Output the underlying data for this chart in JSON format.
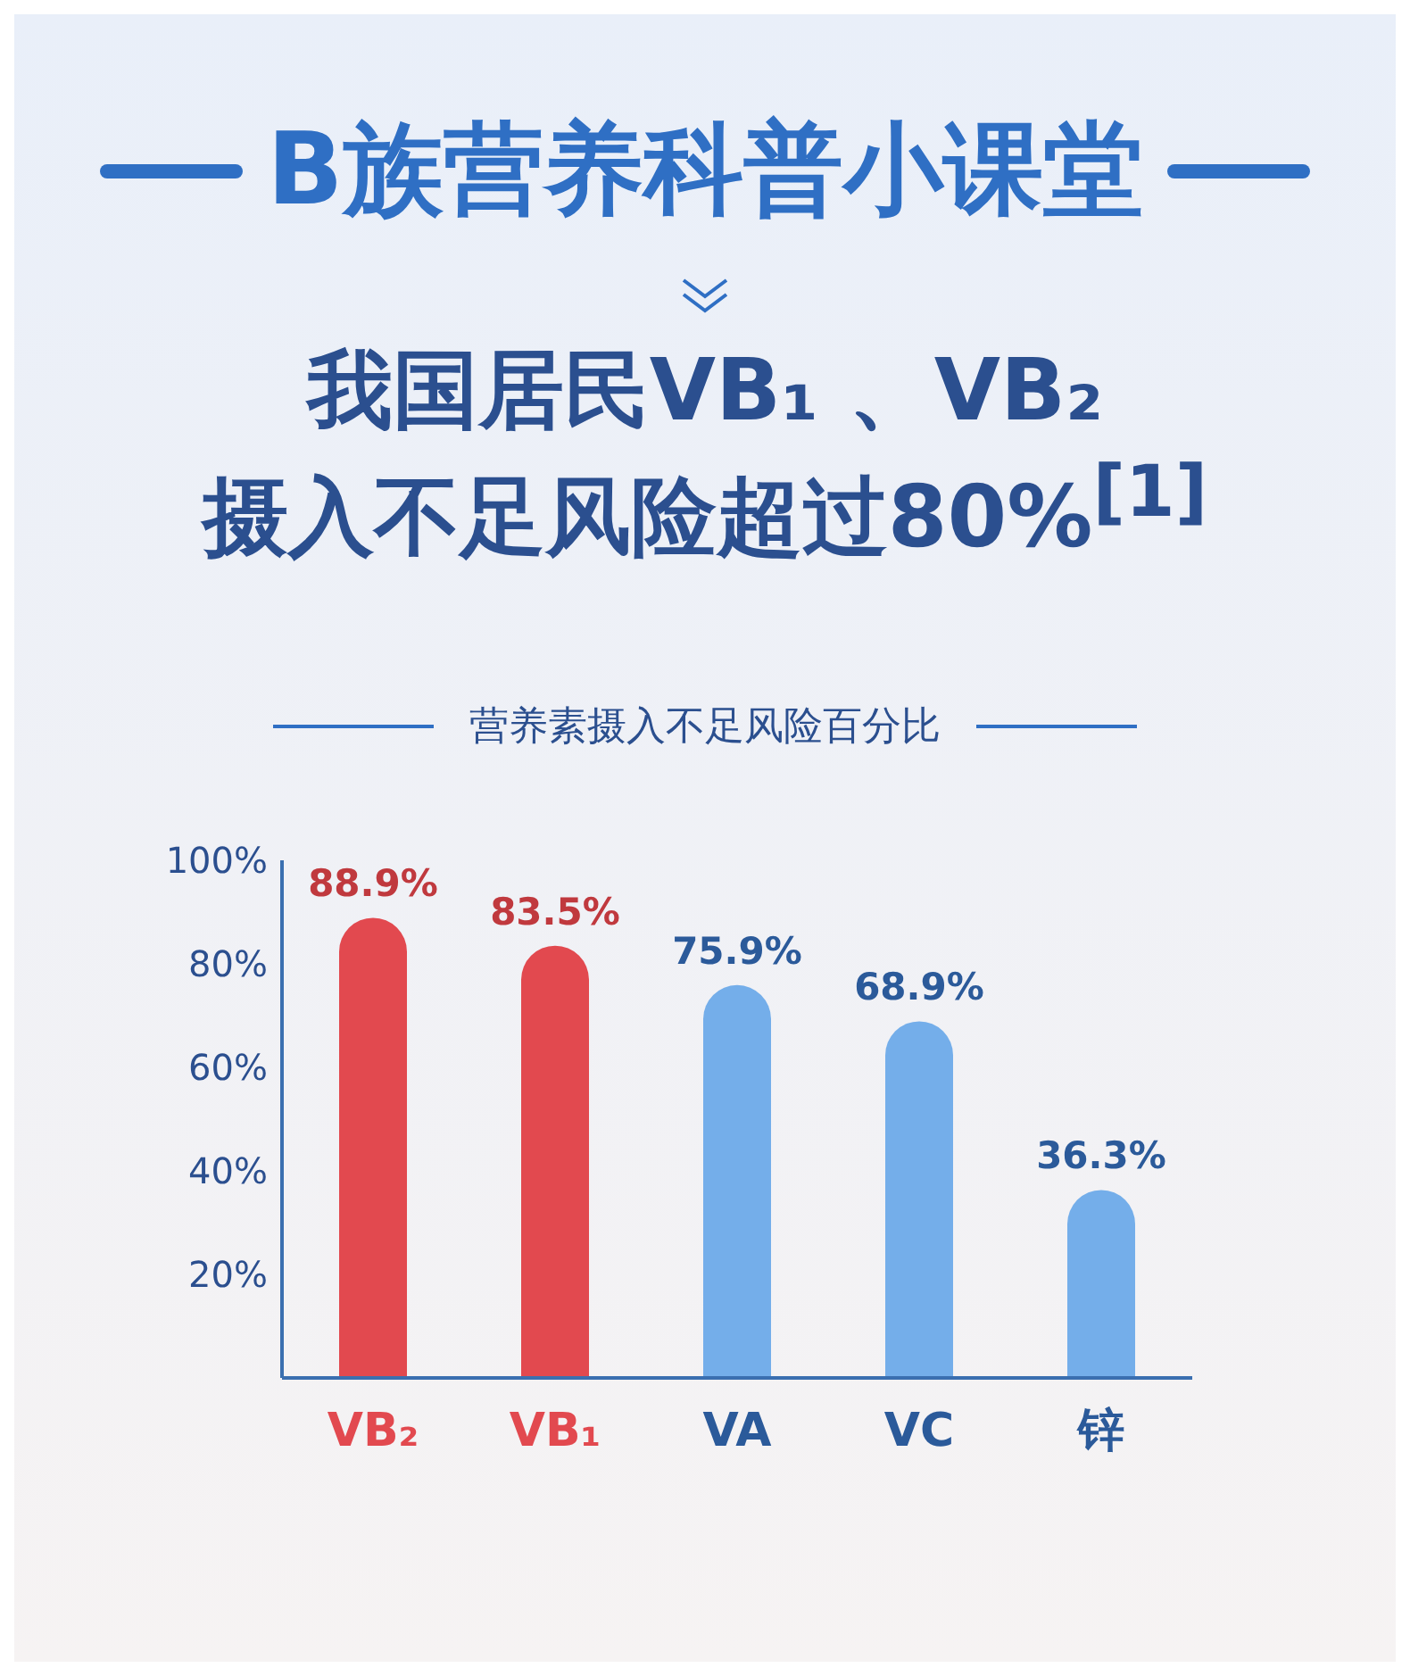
{
  "chart_data": {
    "type": "bar",
    "title": "B族营养科普小课堂",
    "subtitle": "我国居民VB₁ 、VB₂\n摄入不足风险超过80%$^{[1]}$",
    "annotations": [
      "营养素摄入不足风险百分比"
    ],
    "categories": [
      "VB₂",
      "VB₁",
      "VA",
      "VC",
      "锌"
    ],
    "values": [
      88.9,
      83.5,
      75.9,
      68.9,
      36.3
    ],
    "colors": [
      "#e2494f",
      "#e2494f",
      "#74aeea",
      "#74aeea",
      "#74aeea"
    ],
    "value_labels": [
      "88.9%",
      "83.5%",
      "75.9%",
      "68.9%",
      "36.3%"
    ],
    "ylim": [
      0,
      100
    ],
    "yticks": [
      {
        "value": 0,
        "label": null
      },
      {
        "value": 20,
        "label": "20%"
      },
      {
        "value": 40,
        "label": "40%"
      },
      {
        "value": 60,
        "label": "60%"
      },
      {
        "value": 80,
        "label": "80%"
      },
      {
        "value": 100,
        "label": "100%"
      }
    ],
    "grid": false,
    "legend": false
  }
}
